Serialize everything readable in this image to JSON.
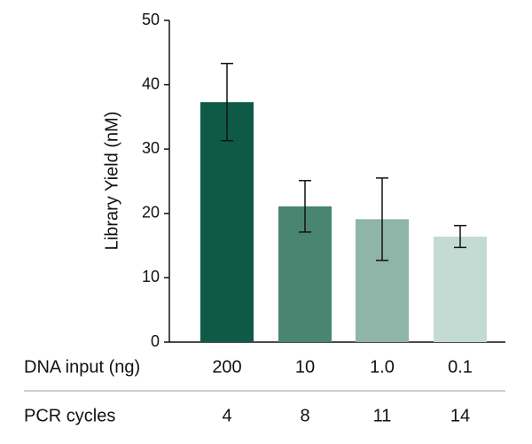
{
  "chart_data": {
    "type": "bar",
    "ylabel": "Library Yield (nM)",
    "xlabel": "DNA input (ng)",
    "categories": [
      "200",
      "10",
      "1.0",
      "0.1"
    ],
    "values": [
      37.3,
      21.1,
      19.1,
      16.4
    ],
    "errors": [
      6.0,
      4.0,
      6.4,
      1.7
    ],
    "colors": [
      "#0f5a46",
      "#4a8572",
      "#8fb4a8",
      "#c4dbd3"
    ],
    "pcr_cycles": {
      "label": "PCR cycles",
      "values": [
        4,
        8,
        11,
        14
      ]
    },
    "ylim": [
      0,
      50
    ],
    "yticks": [
      0,
      10,
      20,
      30,
      40,
      50
    ]
  }
}
